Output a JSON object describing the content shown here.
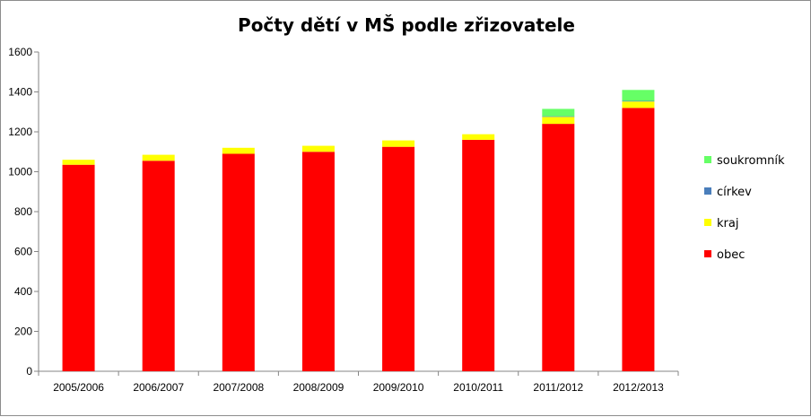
{
  "chart_data": {
    "type": "bar",
    "stacked": true,
    "title": "Počty dětí v MŠ podle zřizovatele",
    "categories": [
      "2005/2006",
      "2006/2007",
      "2007/2008",
      "2008/2009",
      "2009/2010",
      "2010/2011",
      "2011/2012",
      "2012/2013"
    ],
    "series": [
      {
        "name": "obec",
        "color": "#ff0000",
        "values": [
          1035,
          1055,
          1090,
          1100,
          1125,
          1160,
          1240,
          1320
        ]
      },
      {
        "name": "kraj",
        "color": "#ffff00",
        "values": [
          25,
          30,
          30,
          30,
          32,
          28,
          35,
          32
        ]
      },
      {
        "name": "církev",
        "color": "#4a7ebb",
        "values": [
          0,
          0,
          0,
          0,
          0,
          0,
          3,
          3
        ]
      },
      {
        "name": "soukromník",
        "color": "#66ff66",
        "values": [
          0,
          0,
          0,
          0,
          0,
          0,
          37,
          55
        ]
      }
    ],
    "yticks": [
      "0",
      "200",
      "400",
      "600",
      "800",
      "1000",
      "1200",
      "1400",
      "1600"
    ],
    "ylim": [
      0,
      1600
    ],
    "grid": false,
    "legend_position": "right"
  }
}
